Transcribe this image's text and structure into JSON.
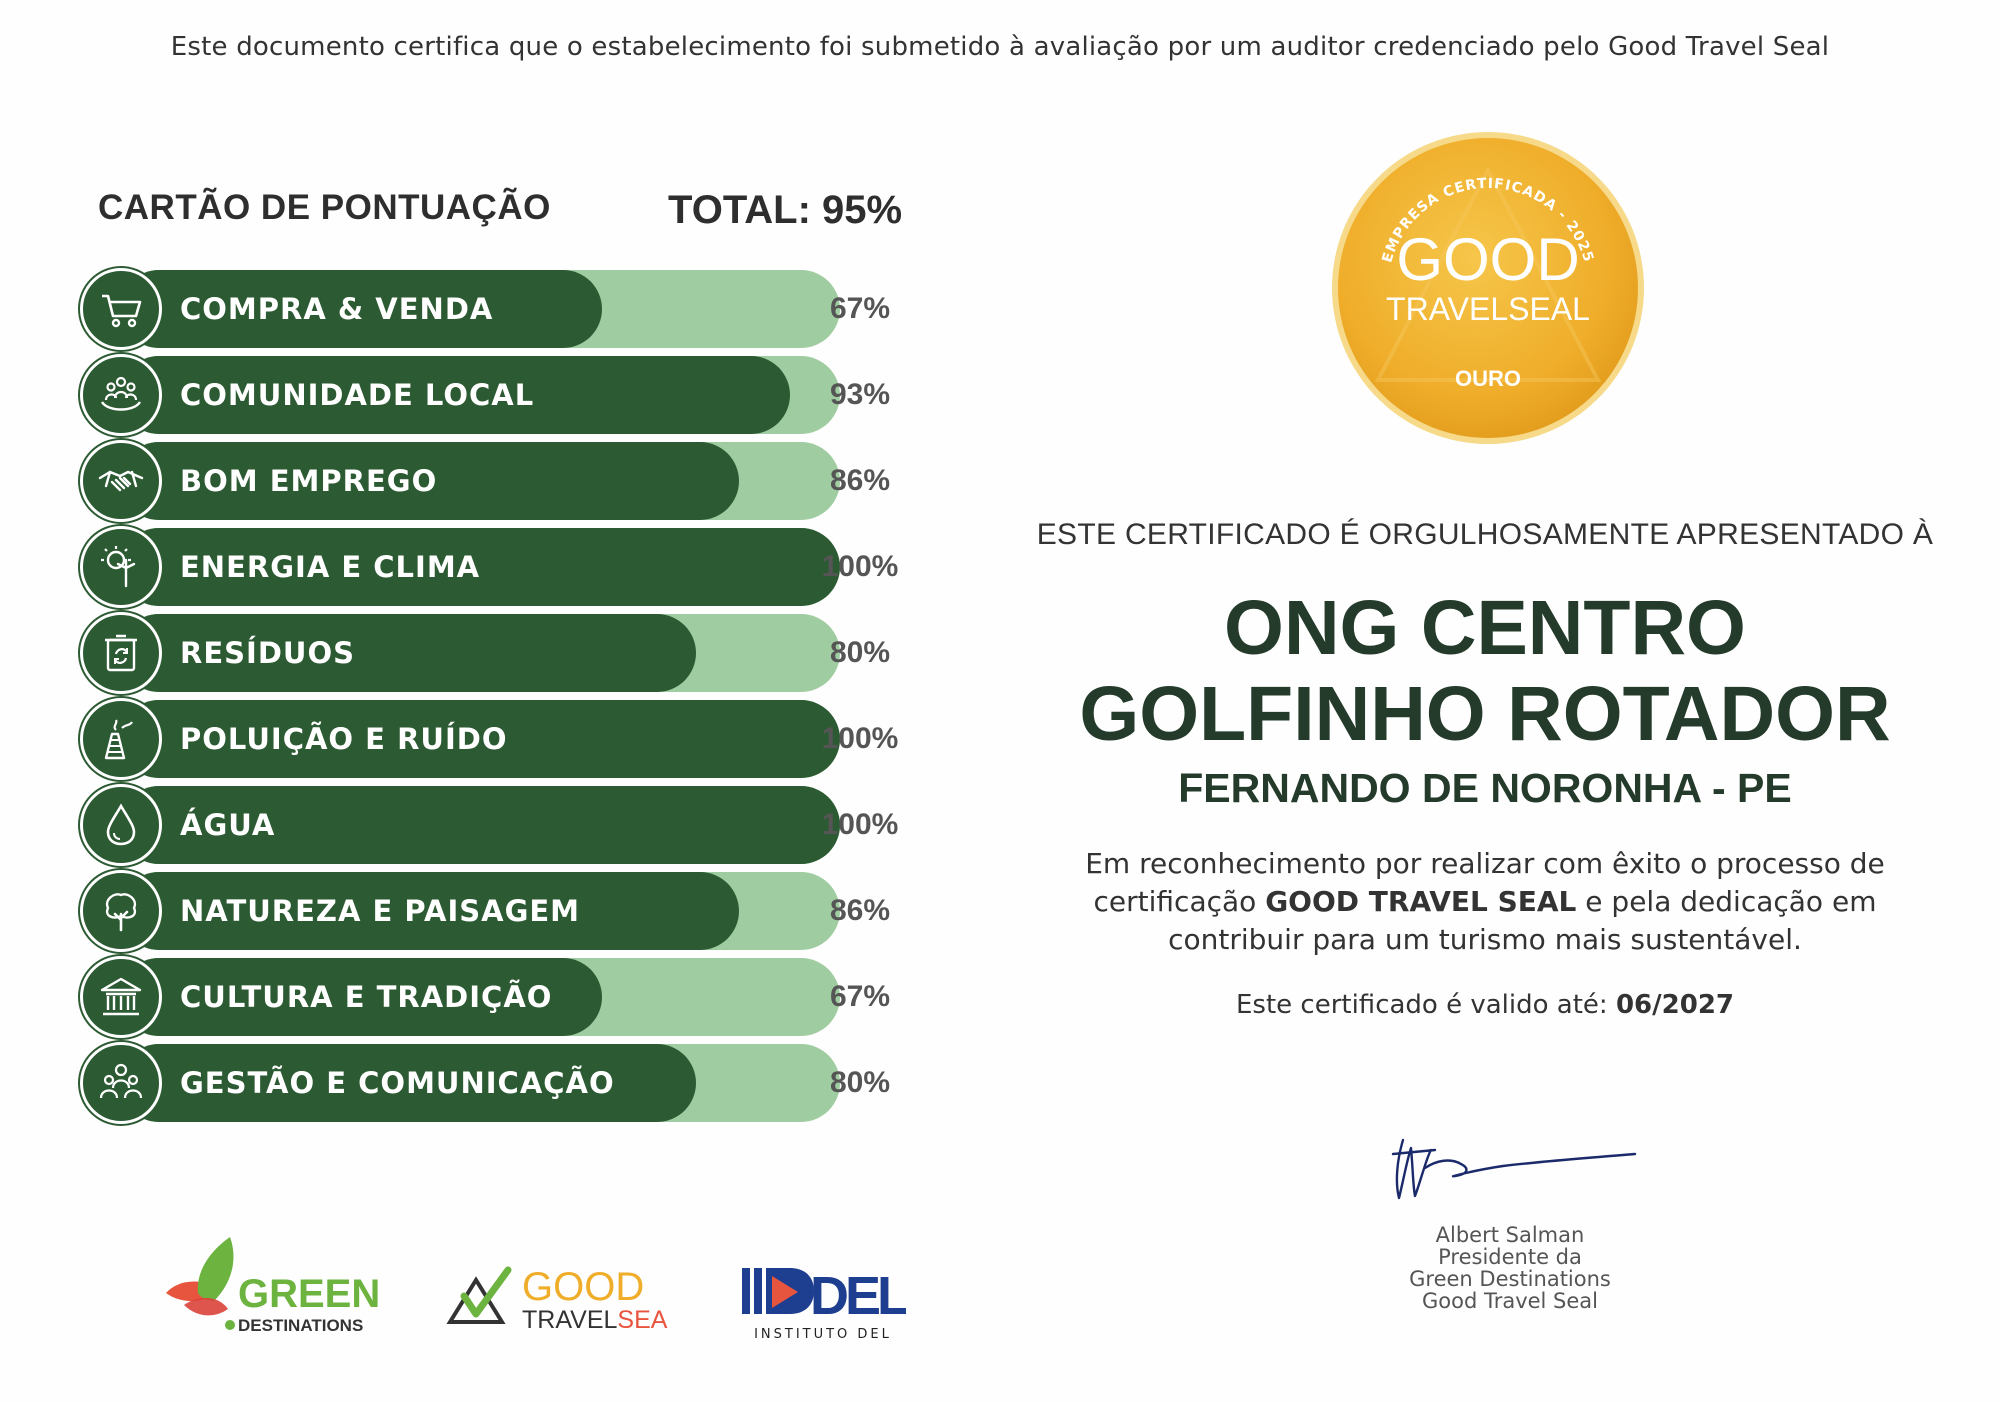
{
  "header": {
    "note": "Este documento certifica que o estabelecimento foi submetido à avaliação por um auditor credenciado pelo Good Travel Seal"
  },
  "scorecard": {
    "title": "CARTÃO DE PONTUAÇÃO",
    "total": "TOTAL: 95%",
    "items": [
      {
        "label": "COMPRA & VENDA",
        "percent": "67%",
        "value": 67,
        "icon": "cart-icon"
      },
      {
        "label": "COMUNIDADE LOCAL",
        "percent": "93%",
        "value": 93,
        "icon": "community-icon"
      },
      {
        "label": "BOM EMPREGO",
        "percent": "86%",
        "value": 86,
        "icon": "handshake-icon"
      },
      {
        "label": "ENERGIA E CLIMA",
        "percent": "100%",
        "value": 100,
        "icon": "energy-icon"
      },
      {
        "label": "RESÍDUOS",
        "percent": "80%",
        "value": 80,
        "icon": "recycle-bin-icon"
      },
      {
        "label": "POLUIÇÃO E RUÍDO",
        "percent": "100%",
        "value": 100,
        "icon": "factory-icon"
      },
      {
        "label": "ÁGUA",
        "percent": "100%",
        "value": 100,
        "icon": "water-drop-icon"
      },
      {
        "label": "NATUREZA E PAISAGEM",
        "percent": "86%",
        "value": 86,
        "icon": "tree-icon"
      },
      {
        "label": "CULTURA E TRADIÇÃO",
        "percent": "67%",
        "value": 67,
        "icon": "museum-icon"
      },
      {
        "label": "GESTÃO E COMUNICAÇÃO",
        "percent": "80%",
        "value": 80,
        "icon": "management-icon"
      }
    ]
  },
  "seal": {
    "arc_text": "EMPRESA CERTIFICADA - 2025",
    "line1": "GOOD",
    "line2": "TRAVELSEAL",
    "level": "OURO",
    "colors": {
      "gold": "#f2b632",
      "gold_dark": "#e19a1b",
      "ring": "#f7d98a"
    }
  },
  "certificate": {
    "presented": "ESTE CERTIFICADO É ORGULHOSAMENTE APRESENTADO À",
    "org_line1": "ONG CENTRO",
    "org_line2": "GOLFINHO ROTADOR",
    "location": "FERNANDO DE NORONHA - PE",
    "recognition_1": "Em reconhecimento por realizar com êxito o processo de",
    "recognition_2a": "certificação ",
    "recognition_2b": "GOOD TRAVEL SEAL",
    "recognition_2c": " e pela dedicação em",
    "recognition_3": "contribuir para um turismo mais sustentável.",
    "validity_label": "Este certificado é valido até: ",
    "validity_date": "06/2027"
  },
  "signer": {
    "name": "Albert Salman",
    "title1": "Presidente da",
    "title2": "Green Destinations",
    "title3": "Good Travel Seal"
  },
  "logos": {
    "green_destinations_1": "GREEN",
    "green_destinations_2": "DESTINATIONS",
    "good_travel_seal_1": "GOOD",
    "good_travel_seal_2a": "TRAVEL",
    "good_travel_seal_2b": "SEAL",
    "del_mark": "DEL",
    "del_caption": "INSTITUTO DEL"
  },
  "colors": {
    "bar_dark": "#2c5a33",
    "bar_light": "#9fcca0",
    "title_dark": "#243a2a"
  }
}
